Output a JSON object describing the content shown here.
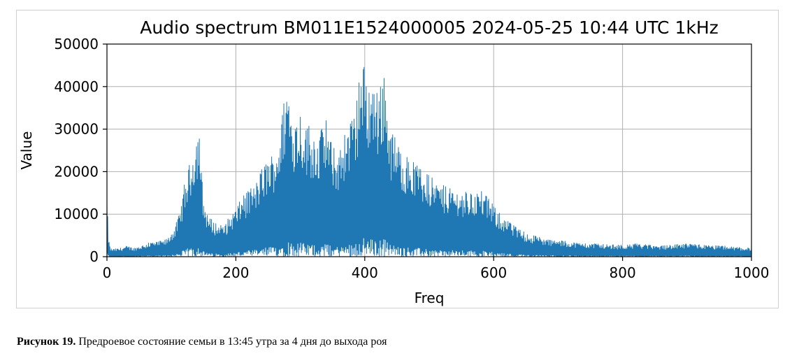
{
  "chart_data": {
    "type": "line",
    "title": "Audio spectrum BM011E1524000005 2024-05-25 10:44 UTC 1kHz",
    "xlabel": "Freq",
    "ylabel": "Value",
    "xlim": [
      0,
      1000
    ],
    "ylim": [
      0,
      50000
    ],
    "xticks": [
      0,
      200,
      400,
      600,
      800,
      1000
    ],
    "yticks": [
      0,
      10000,
      20000,
      30000,
      40000,
      50000
    ],
    "grid": true,
    "series": [
      {
        "color": "#1f77b4",
        "envelope": [
          [
            0,
            15000
          ],
          [
            2,
            5000
          ],
          [
            5,
            2000
          ],
          [
            10,
            1800
          ],
          [
            20,
            2000
          ],
          [
            30,
            2500
          ],
          [
            40,
            2000
          ],
          [
            50,
            2500
          ],
          [
            60,
            3000
          ],
          [
            70,
            3500
          ],
          [
            80,
            3500
          ],
          [
            90,
            4000
          ],
          [
            95,
            4500
          ],
          [
            100,
            6000
          ],
          [
            105,
            7000
          ],
          [
            110,
            9000
          ],
          [
            115,
            12000
          ],
          [
            120,
            17000
          ],
          [
            125,
            20000
          ],
          [
            130,
            23000
          ],
          [
            135,
            27000
          ],
          [
            140,
            30000
          ],
          [
            143,
            31500
          ],
          [
            146,
            22000
          ],
          [
            150,
            13000
          ],
          [
            155,
            11000
          ],
          [
            160,
            9000
          ],
          [
            170,
            8000
          ],
          [
            180,
            7000
          ],
          [
            190,
            9500
          ],
          [
            200,
            11500
          ],
          [
            210,
            14000
          ],
          [
            220,
            15500
          ],
          [
            230,
            17000
          ],
          [
            240,
            21000
          ],
          [
            250,
            23500
          ],
          [
            260,
            25000
          ],
          [
            270,
            31000
          ],
          [
            275,
            38000
          ],
          [
            280,
            42500
          ],
          [
            285,
            36000
          ],
          [
            290,
            33000
          ],
          [
            300,
            35000
          ],
          [
            310,
            31000
          ],
          [
            320,
            30000
          ],
          [
            330,
            29000
          ],
          [
            340,
            32000
          ],
          [
            345,
            28000
          ],
          [
            350,
            26000
          ],
          [
            360,
            25000
          ],
          [
            370,
            29000
          ],
          [
            380,
            33000
          ],
          [
            385,
            35000
          ],
          [
            390,
            40000
          ],
          [
            395,
            44000
          ],
          [
            400,
            46000
          ],
          [
            405,
            41000
          ],
          [
            410,
            43000
          ],
          [
            415,
            40000
          ],
          [
            420,
            38000
          ],
          [
            425,
            41000
          ],
          [
            430,
            45500
          ],
          [
            435,
            37000
          ],
          [
            440,
            30000
          ],
          [
            450,
            27000
          ],
          [
            460,
            25000
          ],
          [
            470,
            23000
          ],
          [
            480,
            21500
          ],
          [
            490,
            20000
          ],
          [
            500,
            19000
          ],
          [
            510,
            18000
          ],
          [
            520,
            17000
          ],
          [
            530,
            16000
          ],
          [
            540,
            16000
          ],
          [
            550,
            15500
          ],
          [
            560,
            15000
          ],
          [
            570,
            15500
          ],
          [
            580,
            15500
          ],
          [
            590,
            14000
          ],
          [
            600,
            12000
          ],
          [
            610,
            10000
          ],
          [
            620,
            8500
          ],
          [
            630,
            7500
          ],
          [
            640,
            6500
          ],
          [
            650,
            5500
          ],
          [
            660,
            5000
          ],
          [
            680,
            4200
          ],
          [
            700,
            3800
          ],
          [
            720,
            3500
          ],
          [
            740,
            3200
          ],
          [
            760,
            3000
          ],
          [
            780,
            2800
          ],
          [
            800,
            2700
          ],
          [
            820,
            3000
          ],
          [
            840,
            2800
          ],
          [
            860,
            2500
          ],
          [
            880,
            2800
          ],
          [
            900,
            3000
          ],
          [
            920,
            2800
          ],
          [
            940,
            2600
          ],
          [
            960,
            2500
          ],
          [
            980,
            2200
          ],
          [
            1000,
            2000
          ]
        ]
      }
    ]
  },
  "caption": {
    "label": "Рисунок 19.",
    "text": " Предроевое состояние семьи в 13:45 утра за 4 дня до выхода роя"
  }
}
